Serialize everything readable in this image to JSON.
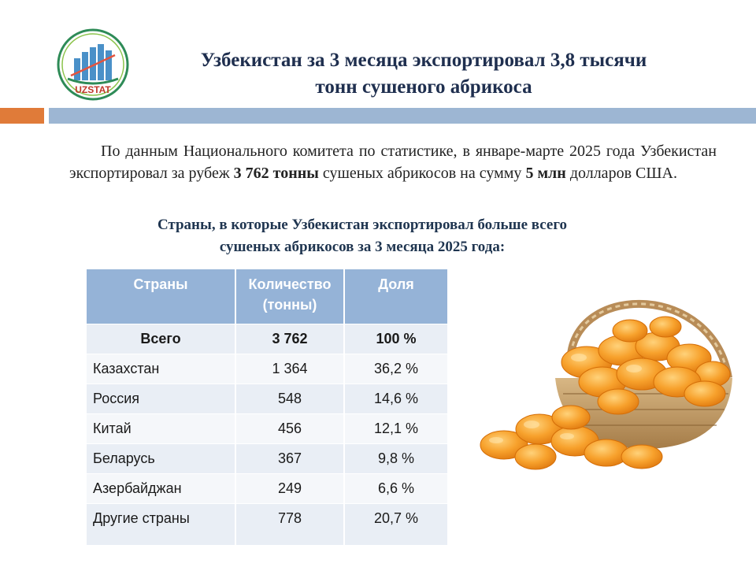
{
  "logo": {
    "text": "UZSTAT",
    "colors": {
      "ring": "#2e8b57",
      "bars": "#4a90c8",
      "text": "#c0392b"
    }
  },
  "title": {
    "line1": "Узбекистан за 3 месяца экспортировал 3,8 тысячи",
    "line2": "тонн сушеного абрикоса"
  },
  "paragraph": {
    "part1": "По данным Национального комитета по статистике, в январе-марте 2025 года Узбекистан экспортировал за рубеж ",
    "bold1": "3 762 тонны",
    "part2": " сушеных абрикосов на сумму ",
    "bold2": "5 млн",
    "part3": " долларов США."
  },
  "subtitle": {
    "line1": "Страны, в которые Узбекистан экспортировал больше всего",
    "line2": "сушеных абрикосов за 3 месяца 2025 года:"
  },
  "table": {
    "headers": {
      "country": "Страны",
      "quantity_line1": "Количество",
      "quantity_line2": "(тонны)",
      "share": "Доля"
    },
    "total": {
      "country": "Всего",
      "quantity": "3 762",
      "share": "100 %"
    },
    "rows": [
      {
        "country": "Казахстан",
        "quantity": "1 364",
        "share": "36,2 %"
      },
      {
        "country": "Россия",
        "quantity": "548",
        "share": "14,6 %"
      },
      {
        "country": "Китай",
        "quantity": "456",
        "share": "12,1 %"
      },
      {
        "country": "Беларусь",
        "quantity": "367",
        "share": "9,8 %"
      },
      {
        "country": "Азербайджан",
        "quantity": "249",
        "share": "6,6 %"
      },
      {
        "country": "Другие страны",
        "quantity": "778",
        "share": "20,7 %"
      }
    ]
  },
  "colors": {
    "accent_orange": "#e07b39",
    "accent_blue": "#9db6d3",
    "table_header": "#95b3d7"
  }
}
